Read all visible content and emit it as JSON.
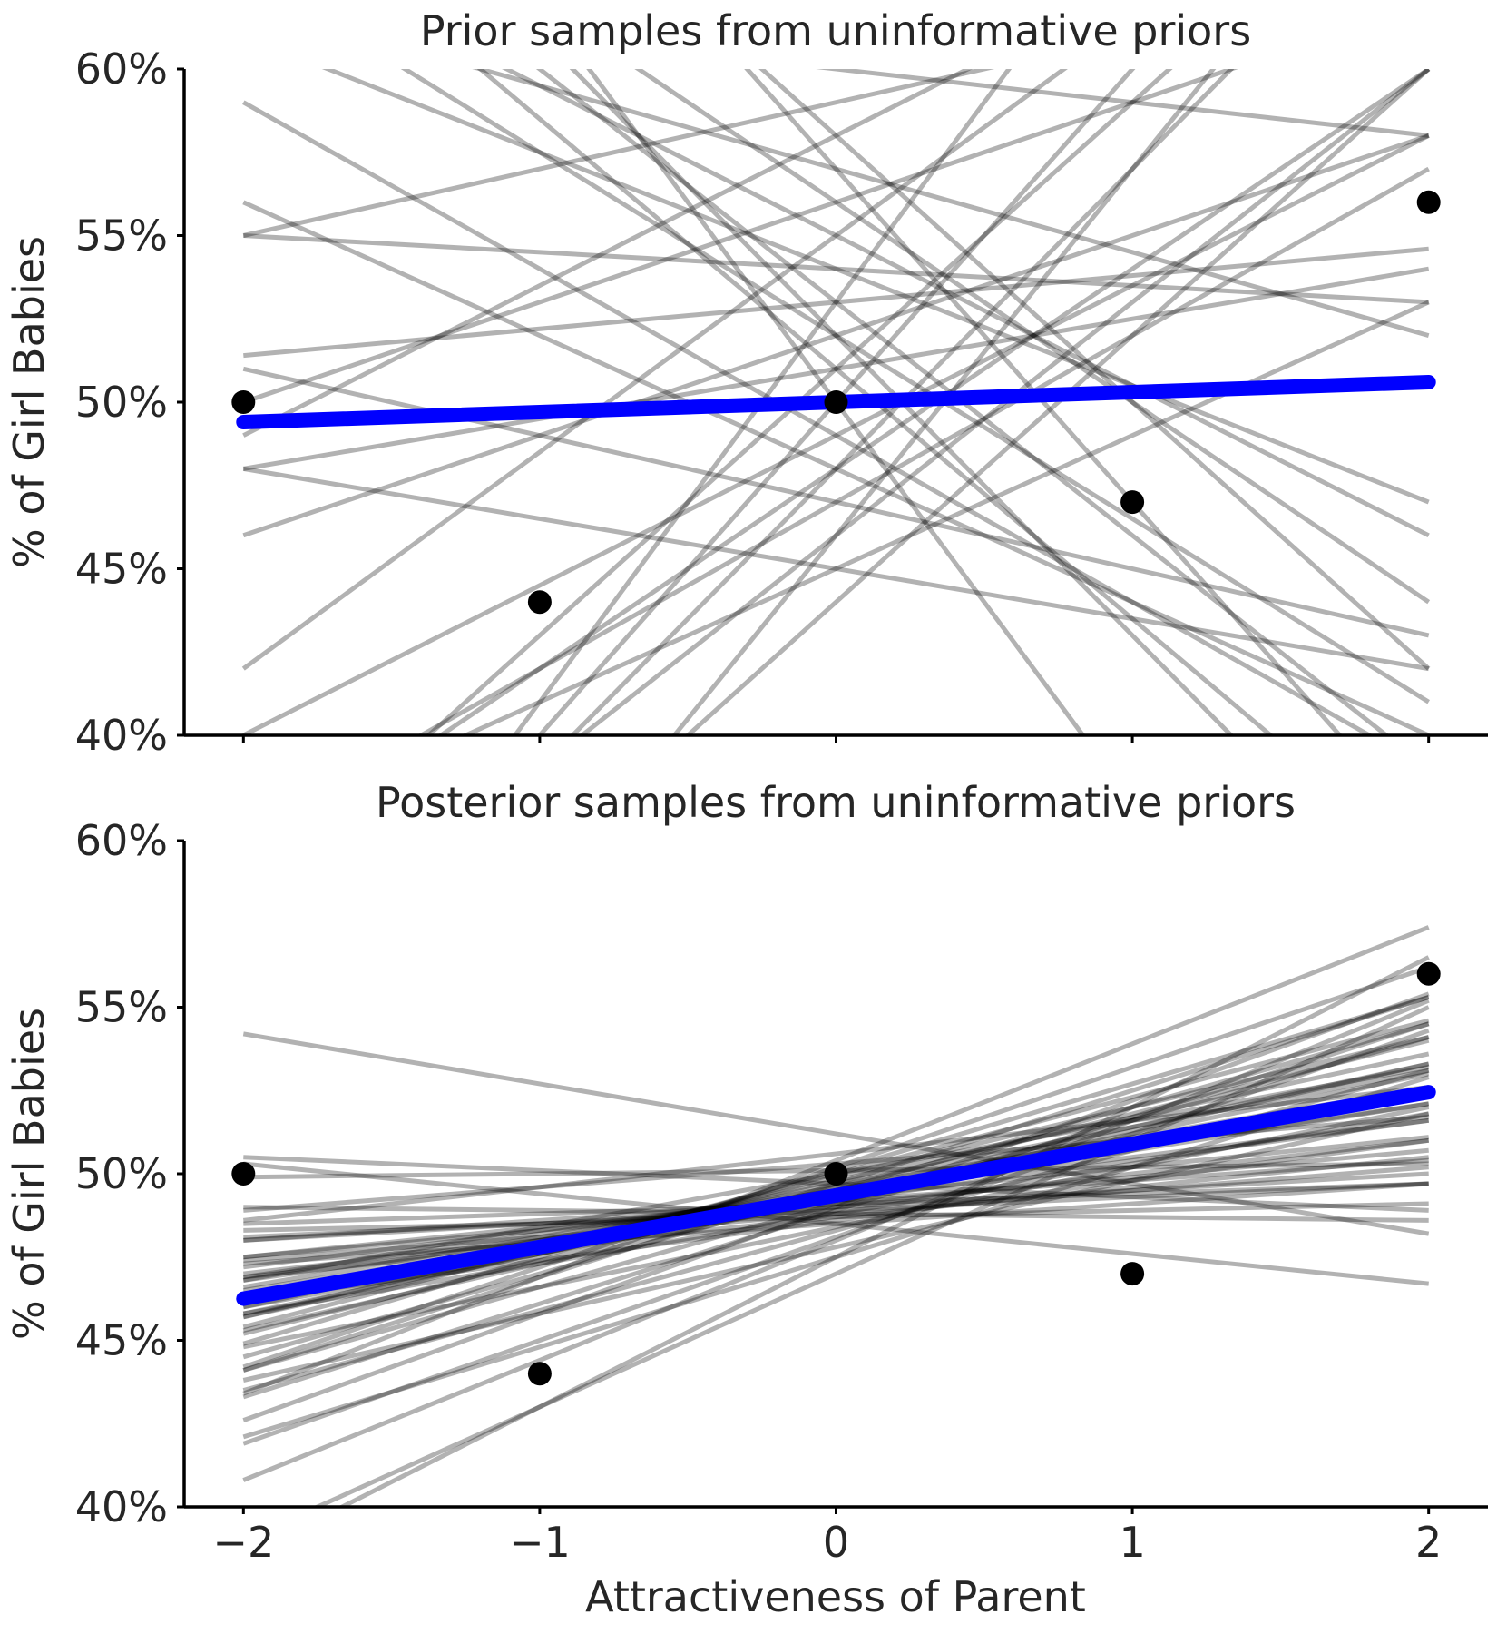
{
  "chart_data": [
    {
      "type": "line",
      "title": "Prior samples from uninformative priors",
      "xlabel": "",
      "ylabel": "% of Girl Babies",
      "xlim": [
        -2.2,
        2.2
      ],
      "ylim": [
        0.4,
        0.6
      ],
      "x_ticks": [
        -2,
        -1,
        0,
        1,
        2
      ],
      "x_tick_labels": [],
      "y_ticks": [
        0.4,
        0.45,
        0.5,
        0.55,
        0.6
      ],
      "y_tick_labels": [
        "40%",
        "45%",
        "50%",
        "55%",
        "60%"
      ],
      "grid": false,
      "sample_color": "#000000",
      "mean_color": "#0000ff",
      "points": {
        "x": [
          -2,
          -1,
          0,
          1,
          2
        ],
        "y": [
          0.5,
          0.44,
          0.5,
          0.47,
          0.56
        ]
      },
      "mean_line": {
        "intercept": 0.5,
        "slope": 0.003
      },
      "samples": [
        {
          "intercept": 0.53,
          "slope": 0.008
        },
        {
          "intercept": 0.52,
          "slope": 0.03
        },
        {
          "intercept": 0.48,
          "slope": 0.06
        },
        {
          "intercept": 0.57,
          "slope": -0.025
        },
        {
          "intercept": 0.49,
          "slope": -0.05
        },
        {
          "intercept": 0.56,
          "slope": 0.03
        },
        {
          "intercept": 0.47,
          "slope": 0.05
        },
        {
          "intercept": 0.51,
          "slope": 0.08
        },
        {
          "intercept": 0.6,
          "slope": -0.01
        },
        {
          "intercept": 0.53,
          "slope": -0.07
        },
        {
          "intercept": 0.46,
          "slope": 0.07
        },
        {
          "intercept": 0.54,
          "slope": -0.035
        },
        {
          "intercept": 0.5,
          "slope": 0.1
        },
        {
          "intercept": 0.56,
          "slope": -0.06
        },
        {
          "intercept": 0.45,
          "slope": 0.04
        },
        {
          "intercept": 0.52,
          "slope": -0.09
        },
        {
          "intercept": 0.59,
          "slope": 0.02
        },
        {
          "intercept": 0.48,
          "slope": -0.04
        },
        {
          "intercept": 0.55,
          "slope": 0.065
        },
        {
          "intercept": 0.44,
          "slope": 0.08
        },
        {
          "intercept": 0.58,
          "slope": -0.08
        },
        {
          "intercept": 0.51,
          "slope": 0.015
        },
        {
          "intercept": 0.47,
          "slope": -0.02
        },
        {
          "intercept": 0.53,
          "slope": 0.12
        },
        {
          "intercept": 0.5,
          "slope": -0.12
        },
        {
          "intercept": 0.54,
          "slope": -0.005
        },
        {
          "intercept": 0.46,
          "slope": 0.11
        },
        {
          "intercept": 0.57,
          "slope": -0.1
        },
        {
          "intercept": 0.49,
          "slope": 0.045
        },
        {
          "intercept": 0.52,
          "slope": -0.055
        },
        {
          "intercept": 0.58,
          "slope": 0.045
        },
        {
          "intercept": 0.45,
          "slope": -0.015
        },
        {
          "intercept": 0.55,
          "slope": -0.045
        },
        {
          "intercept": 0.48,
          "slope": 0.09
        },
        {
          "intercept": 0.51,
          "slope": -0.075
        }
      ]
    },
    {
      "type": "line",
      "title": "Posterior samples from uninformative priors",
      "xlabel": "Attractiveness of Parent",
      "ylabel": "% of Girl Babies",
      "xlim": [
        -2.2,
        2.2
      ],
      "ylim": [
        0.4,
        0.6
      ],
      "x_ticks": [
        -2,
        -1,
        0,
        1,
        2
      ],
      "x_tick_labels": [
        "−2",
        "−1",
        "0",
        "1",
        "2"
      ],
      "y_ticks": [
        0.4,
        0.45,
        0.5,
        0.55,
        0.6
      ],
      "y_tick_labels": [
        "40%",
        "45%",
        "50%",
        "55%",
        "60%"
      ],
      "grid": false,
      "sample_color": "#000000",
      "mean_color": "#0000ff",
      "points": {
        "x": [
          -2,
          -1,
          0,
          1,
          2
        ],
        "y": [
          0.5,
          0.44,
          0.5,
          0.47,
          0.56
        ]
      },
      "mean_line": {
        "intercept": 0.4935,
        "slope": 0.0155
      },
      "samples": [
        {
          "intercept": 0.491,
          "slope": 0.003
        },
        {
          "intercept": 0.49,
          "slope": 0.005
        },
        {
          "intercept": 0.489,
          "slope": 0.004
        },
        {
          "intercept": 0.492,
          "slope": 0.006
        },
        {
          "intercept": 0.488,
          "slope": 0.007
        },
        {
          "intercept": 0.491,
          "slope": 0.008
        },
        {
          "intercept": 0.493,
          "slope": 0.009
        },
        {
          "intercept": 0.49,
          "slope": 0.01
        },
        {
          "intercept": 0.494,
          "slope": 0.011
        },
        {
          "intercept": 0.492,
          "slope": 0.012
        },
        {
          "intercept": 0.495,
          "slope": 0.013
        },
        {
          "intercept": 0.493,
          "slope": 0.014
        },
        {
          "intercept": 0.496,
          "slope": 0.015
        },
        {
          "intercept": 0.492,
          "slope": 0.016
        },
        {
          "intercept": 0.497,
          "slope": 0.017
        },
        {
          "intercept": 0.494,
          "slope": 0.018
        },
        {
          "intercept": 0.498,
          "slope": 0.019
        },
        {
          "intercept": 0.493,
          "slope": 0.02
        },
        {
          "intercept": 0.499,
          "slope": 0.021
        },
        {
          "intercept": 0.496,
          "slope": 0.022
        },
        {
          "intercept": 0.5,
          "slope": 0.023
        },
        {
          "intercept": 0.495,
          "slope": 0.025
        },
        {
          "intercept": 0.501,
          "slope": 0.026
        },
        {
          "intercept": 0.497,
          "slope": 0.028
        },
        {
          "intercept": 0.502,
          "slope": 0.03
        },
        {
          "intercept": 0.49,
          "slope": 0.032
        },
        {
          "intercept": 0.504,
          "slope": 0.035
        },
        {
          "intercept": 0.488,
          "slope": 0.015
        },
        {
          "intercept": 0.486,
          "slope": 0.012
        },
        {
          "intercept": 0.484,
          "slope": 0.018
        },
        {
          "intercept": 0.487,
          "slope": 0.009
        },
        {
          "intercept": 0.485,
          "slope": 0.006
        },
        {
          "intercept": 0.506,
          "slope": 0.01
        },
        {
          "intercept": 0.503,
          "slope": 0.007
        },
        {
          "intercept": 0.497,
          "slope": -0.004
        },
        {
          "intercept": 0.488,
          "slope": -0.001
        },
        {
          "intercept": 0.485,
          "slope": -0.009
        },
        {
          "intercept": 0.487,
          "slope": 0.002
        },
        {
          "intercept": 0.501,
          "slope": 0.001
        },
        {
          "intercept": 0.512,
          "slope": -0.015
        },
        {
          "intercept": 0.478,
          "slope": 0.02
        },
        {
          "intercept": 0.475,
          "slope": 0.027
        },
        {
          "intercept": 0.48,
          "slope": 0.036
        },
        {
          "intercept": 0.47,
          "slope": 0.04
        },
        {
          "intercept": 0.475,
          "slope": 0.045
        },
        {
          "intercept": 0.491,
          "slope": 0.025
        },
        {
          "intercept": 0.489,
          "slope": 0.028
        },
        {
          "intercept": 0.495,
          "slope": 0.019
        },
        {
          "intercept": 0.483,
          "slope": 0.024
        },
        {
          "intercept": 0.5,
          "slope": 0.016
        },
        {
          "intercept": 0.481,
          "slope": 0.031
        }
      ]
    }
  ]
}
